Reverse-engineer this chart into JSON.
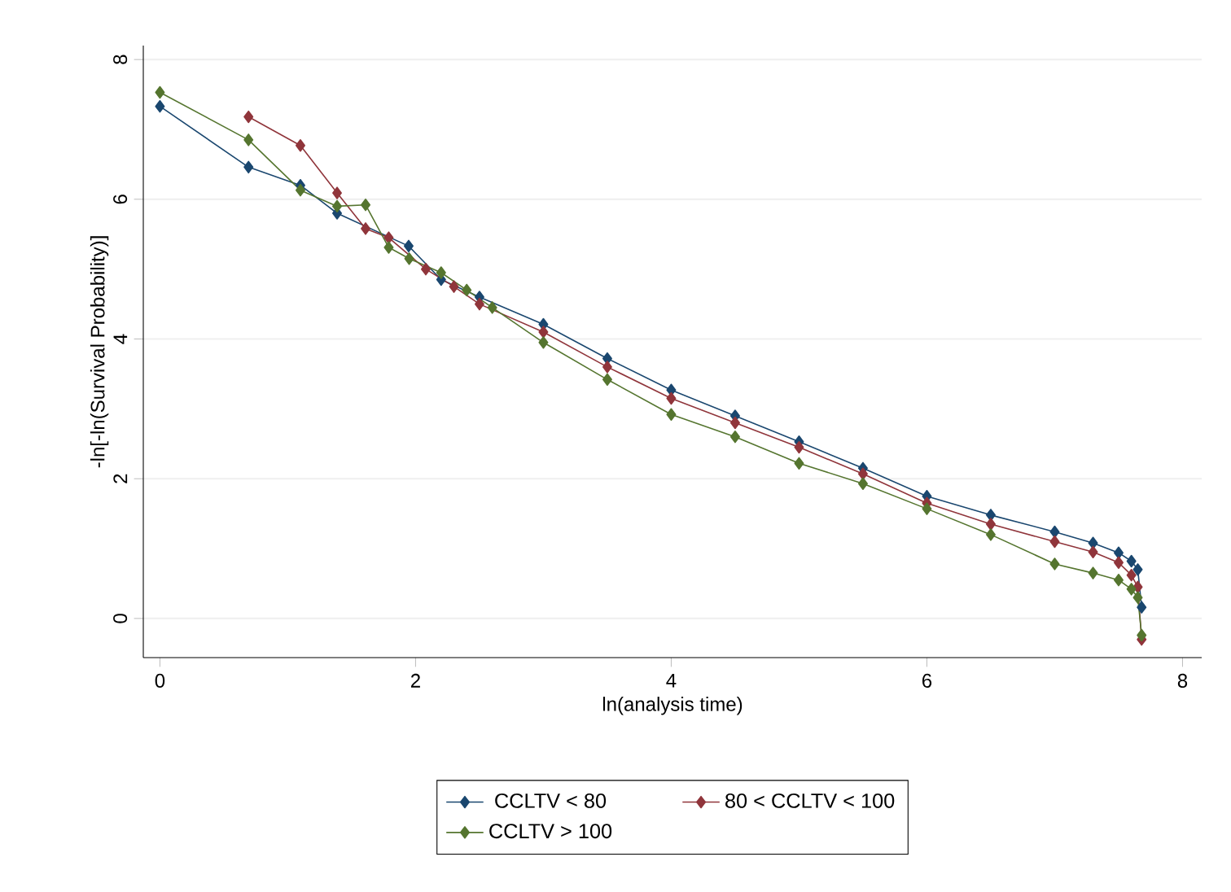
{
  "chart_data": {
    "type": "line",
    "xlabel": "ln(analysis time)",
    "ylabel": "-ln[-ln(Survival Probability)]",
    "xlim": [
      -0.13,
      8.15
    ],
    "ylim": [
      -0.56,
      8.2
    ],
    "xticks": [
      0,
      2,
      4,
      6,
      8
    ],
    "yticks": [
      0,
      2,
      4,
      6,
      8
    ],
    "grid": "y",
    "legend": "bottom",
    "marker": "diamond",
    "series": [
      {
        "name": "CCLTV < 80",
        "color": "#1a476f",
        "x": [
          0,
          0.693,
          1.099,
          1.386,
          1.946,
          2.2,
          2.5,
          3.0,
          3.5,
          4.0,
          4.5,
          5.0,
          5.5,
          6.0,
          6.5,
          7.0,
          7.3,
          7.5,
          7.6,
          7.65,
          7.68
        ],
        "values": [
          7.33,
          6.46,
          6.2,
          5.8,
          5.33,
          4.85,
          4.6,
          4.21,
          3.72,
          3.27,
          2.9,
          2.53,
          2.15,
          1.75,
          1.48,
          1.24,
          1.08,
          0.94,
          0.82,
          0.7,
          0.16
        ]
      },
      {
        "name": "80 < CCLTV < 100",
        "color": "#90353b",
        "x": [
          0.693,
          1.099,
          1.386,
          1.609,
          1.79,
          2.08,
          2.3,
          2.5,
          3.0,
          3.5,
          4.0,
          4.5,
          5.0,
          5.5,
          6.0,
          6.5,
          7.0,
          7.3,
          7.5,
          7.6,
          7.65,
          7.68
        ],
        "values": [
          7.18,
          6.77,
          6.09,
          5.58,
          5.45,
          5.0,
          4.75,
          4.5,
          4.1,
          3.6,
          3.15,
          2.8,
          2.45,
          2.07,
          1.65,
          1.35,
          1.1,
          0.95,
          0.8,
          0.62,
          0.45,
          -0.3
        ]
      },
      {
        "name": "CCLTV > 100",
        "color": "#55752f",
        "x": [
          0,
          0.693,
          1.099,
          1.386,
          1.609,
          1.79,
          1.95,
          2.2,
          2.4,
          2.6,
          3.0,
          3.5,
          4.0,
          4.5,
          5.0,
          5.5,
          6.0,
          6.5,
          7.0,
          7.3,
          7.5,
          7.6,
          7.65,
          7.68
        ],
        "values": [
          7.53,
          6.85,
          6.13,
          5.9,
          5.92,
          5.31,
          5.15,
          4.95,
          4.7,
          4.45,
          3.95,
          3.42,
          2.92,
          2.6,
          2.22,
          1.93,
          1.57,
          1.2,
          0.78,
          0.65,
          0.55,
          0.42,
          0.3,
          -0.24
        ]
      }
    ]
  }
}
